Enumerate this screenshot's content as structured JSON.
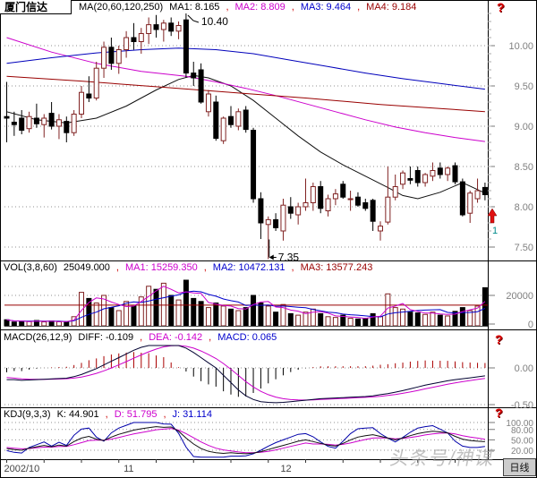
{
  "meta": {
    "title": "厦门信达",
    "period_label": "日线",
    "watermark": "头条号/神谋",
    "help_glyph": "?"
  },
  "colors": {
    "candle_up": "#802222",
    "candle_down": "#000000",
    "ma1": "#101010",
    "ma2": "#cc00cc",
    "ma3": "#0000bb",
    "ma4": "#990000",
    "grid": "#909090",
    "axis_label": "#808080",
    "separator": "#cc0000",
    "signal_arrow": "#e01010",
    "signal_count": "#008b8b",
    "hist_pos": "#aa0000",
    "hist_neg": "#000000"
  },
  "panels": {
    "main": {
      "header": {
        "ma_group": "MA(20,60,120,250)",
        "ma1": "MA1: 8.165",
        "ma2": "MA2: 8.809",
        "ma3": "MA3: 9.464",
        "ma4": "MA4: 9.184",
        "sep": ","
      },
      "y_labels": [
        "10.00",
        "9.50",
        "9.00",
        "8.50",
        "8.00",
        "7.50"
      ],
      "annotations": {
        "high": "10.40",
        "low": "7.35"
      },
      "signal": {
        "count": "1"
      }
    },
    "vol": {
      "header": {
        "label": "VOL(3,8,60)",
        "value": "25049.000",
        "ma1": "MA1: 15259.350",
        "ma2": "MA2: 10472.131",
        "ma3": "MA3: 13577.243",
        "sep": ","
      },
      "y_labels": [
        "20000",
        "0"
      ]
    },
    "macd": {
      "header": {
        "label": "MACD(26,12,9)",
        "diff": "DIFF: -0.109",
        "dea": "DEA: -0.142",
        "macd": "MACD: 0.065",
        "sep": ","
      },
      "y_labels": [
        "0.00",
        "-0.50"
      ]
    },
    "kdj": {
      "header": {
        "label": "KDJ(9,3,3)",
        "k": "K: 44.901",
        "d": "D: 51.795",
        "j": "J: 31.114",
        "sep": ","
      },
      "y_labels": [
        "100.00",
        "80.00",
        "50.00",
        "20.00"
      ]
    }
  },
  "x_axis": {
    "labels": [
      {
        "text": "2002/10",
        "index": 0
      },
      {
        "text": "11",
        "index": 16
      },
      {
        "text": "12",
        "index": 37
      }
    ]
  },
  "chart_data": [
    {
      "type": "candlestick",
      "title": "厦门信达 daily",
      "ylim": [
        7.35,
        10.45
      ],
      "y_ticks": [
        10.0,
        9.5,
        9.0,
        8.5,
        8.0,
        7.5
      ],
      "ohlc": [
        [
          9.12,
          9.55,
          8.8,
          9.1
        ],
        [
          9.05,
          9.18,
          8.88,
          9.02
        ],
        [
          9.1,
          9.2,
          8.9,
          8.95
        ],
        [
          8.97,
          9.18,
          8.92,
          9.12
        ],
        [
          9.1,
          9.28,
          8.98,
          9.03
        ],
        [
          9.02,
          9.15,
          8.86,
          9.1
        ],
        [
          9.16,
          9.3,
          8.96,
          9.0
        ],
        [
          9.0,
          9.15,
          8.84,
          9.08
        ],
        [
          9.06,
          9.12,
          8.8,
          8.92
        ],
        [
          8.92,
          9.2,
          8.88,
          9.15
        ],
        [
          9.15,
          9.5,
          9.1,
          9.42
        ],
        [
          9.4,
          9.62,
          9.3,
          9.35
        ],
        [
          9.35,
          9.8,
          9.32,
          9.72
        ],
        [
          9.72,
          10.05,
          9.6,
          9.98
        ],
        [
          9.98,
          10.1,
          9.7,
          9.78
        ],
        [
          9.78,
          10.0,
          9.65,
          9.95
        ],
        [
          9.95,
          10.18,
          9.85,
          10.1
        ],
        [
          10.1,
          10.28,
          9.95,
          10.05
        ],
        [
          10.05,
          10.22,
          9.9,
          10.15
        ],
        [
          10.15,
          10.35,
          10.02,
          10.26
        ],
        [
          10.26,
          10.38,
          10.1,
          10.2
        ],
        [
          10.2,
          10.32,
          10.05,
          10.28
        ],
        [
          10.28,
          10.35,
          10.12,
          10.18
        ],
        [
          10.18,
          10.3,
          10.08,
          10.25
        ],
        [
          10.32,
          10.4,
          9.6,
          9.66
        ],
        [
          9.66,
          9.8,
          9.5,
          9.6
        ],
        [
          9.7,
          9.78,
          9.28,
          9.3
        ],
        [
          9.18,
          9.45,
          9.12,
          9.4
        ],
        [
          9.3,
          9.38,
          8.82,
          8.85
        ],
        [
          8.82,
          9.12,
          8.78,
          9.1
        ],
        [
          9.12,
          9.25,
          8.98,
          9.02
        ],
        [
          9.0,
          9.22,
          8.95,
          9.18
        ],
        [
          9.2,
          9.25,
          8.92,
          8.96
        ],
        [
          8.95,
          8.98,
          8.05,
          8.1
        ],
        [
          8.1,
          8.18,
          7.6,
          7.8
        ],
        [
          7.78,
          7.88,
          7.35,
          7.84
        ],
        [
          7.84,
          7.92,
          7.7,
          7.74
        ],
        [
          7.7,
          8.1,
          7.58,
          8.02
        ],
        [
          8.0,
          8.12,
          7.85,
          7.92
        ],
        [
          7.9,
          8.05,
          7.78,
          8.0
        ],
        [
          8.0,
          8.35,
          7.95,
          8.05
        ],
        [
          8.05,
          8.3,
          7.95,
          8.25
        ],
        [
          8.25,
          8.32,
          7.92,
          7.98
        ],
        [
          7.95,
          8.15,
          7.88,
          8.1
        ],
        [
          8.1,
          8.22,
          8.02,
          8.16
        ],
        [
          8.28,
          8.32,
          8.1,
          8.12
        ],
        [
          8.1,
          8.2,
          7.95,
          8.1
        ],
        [
          8.12,
          8.18,
          8.0,
          8.02
        ],
        [
          8.05,
          8.1,
          7.95,
          7.98
        ],
        [
          8.08,
          8.1,
          7.7,
          7.82
        ],
        [
          7.7,
          7.82,
          7.58,
          7.76
        ],
        [
          7.81,
          8.5,
          7.78,
          8.12
        ],
        [
          8.12,
          8.4,
          8.08,
          8.25
        ],
        [
          8.28,
          8.45,
          8.22,
          8.42
        ],
        [
          8.35,
          8.5,
          8.28,
          8.33
        ],
        [
          8.45,
          8.5,
          8.25,
          8.3
        ],
        [
          8.3,
          8.42,
          8.25,
          8.4
        ],
        [
          8.38,
          8.55,
          8.32,
          8.45
        ],
        [
          8.48,
          8.55,
          8.35,
          8.4
        ],
        [
          8.4,
          8.5,
          8.32,
          8.48
        ],
        [
          8.51,
          8.55,
          8.28,
          8.31
        ],
        [
          8.31,
          8.35,
          7.88,
          7.9
        ],
        [
          7.92,
          8.2,
          7.8,
          8.17
        ],
        [
          8.1,
          8.35,
          8.05,
          8.2
        ],
        [
          8.24,
          8.3,
          8.08,
          8.15
        ]
      ],
      "ma_lines": [
        {
          "name": "MA1(20)",
          "color": "#101010",
          "points": [
            [
              0,
              9.18
            ],
            [
              4,
              9.08
            ],
            [
              8,
              9.04
            ],
            [
              12,
              9.1
            ],
            [
              16,
              9.25
            ],
            [
              20,
              9.45
            ],
            [
              23,
              9.58
            ],
            [
              25,
              9.63
            ],
            [
              27,
              9.6
            ],
            [
              30,
              9.5
            ],
            [
              33,
              9.32
            ],
            [
              36,
              9.1
            ],
            [
              39,
              8.88
            ],
            [
              42,
              8.68
            ],
            [
              45,
              8.52
            ],
            [
              48,
              8.38
            ],
            [
              51,
              8.24
            ],
            [
              53,
              8.14
            ],
            [
              55,
              8.1
            ],
            [
              58,
              8.18
            ],
            [
              61,
              8.3
            ],
            [
              64,
              8.17
            ]
          ]
        },
        {
          "name": "MA2(60)",
          "color": "#cc00cc",
          "points": [
            [
              0,
              10.1
            ],
            [
              6,
              9.92
            ],
            [
              12,
              9.78
            ],
            [
              18,
              9.68
            ],
            [
              24,
              9.62
            ],
            [
              28,
              9.55
            ],
            [
              32,
              9.47
            ],
            [
              36,
              9.38
            ],
            [
              40,
              9.28
            ],
            [
              44,
              9.18
            ],
            [
              48,
              9.08
            ],
            [
              52,
              8.99
            ],
            [
              56,
              8.92
            ],
            [
              60,
              8.86
            ],
            [
              64,
              8.81
            ]
          ]
        },
        {
          "name": "MA3(120)",
          "color": "#0000bb",
          "points": [
            [
              0,
              9.78
            ],
            [
              6,
              9.85
            ],
            [
              12,
              9.91
            ],
            [
              18,
              9.95
            ],
            [
              23,
              9.97
            ],
            [
              28,
              9.95
            ],
            [
              33,
              9.9
            ],
            [
              38,
              9.82
            ],
            [
              43,
              9.74
            ],
            [
              48,
              9.66
            ],
            [
              53,
              9.59
            ],
            [
              58,
              9.53
            ],
            [
              64,
              9.46
            ]
          ]
        },
        {
          "name": "MA4(250)",
          "color": "#990000",
          "points": [
            [
              0,
              9.62
            ],
            [
              10,
              9.56
            ],
            [
              20,
              9.49
            ],
            [
              30,
              9.42
            ],
            [
              40,
              9.35
            ],
            [
              50,
              9.27
            ],
            [
              58,
              9.22
            ],
            [
              64,
              9.18
            ]
          ]
        }
      ],
      "annotations": [
        {
          "text": "10.40",
          "index": 24,
          "price": 10.4,
          "kind": "high"
        },
        {
          "text": "7.35",
          "index": 35,
          "price": 7.35,
          "kind": "low"
        }
      ]
    },
    {
      "type": "bar",
      "name": "volume",
      "y_ticks": [
        20000,
        0
      ],
      "current": 25049,
      "ma3_flat": 13577.243,
      "values": [
        4000,
        2500,
        3000,
        2800,
        3500,
        2600,
        3200,
        2700,
        2400,
        6000,
        22000,
        18000,
        15000,
        20000,
        12000,
        10000,
        16000,
        13000,
        19000,
        26000,
        24000,
        28000,
        20000,
        17000,
        30000,
        18000,
        16000,
        12000,
        15000,
        13000,
        11000,
        10000,
        12000,
        20000,
        15000,
        13000,
        9000,
        14000,
        8000,
        7000,
        9000,
        11000,
        8000,
        6000,
        5500,
        7000,
        5000,
        4500,
        5000,
        8000,
        6000,
        21000,
        12000,
        11000,
        9000,
        8500,
        7500,
        9000,
        7000,
        6500,
        9500,
        12000,
        10000,
        13000,
        25049
      ]
    },
    {
      "type": "macd",
      "y_ticks": [
        0.0,
        -0.5
      ],
      "final": {
        "diff": -0.109,
        "dea": -0.142,
        "macd": 0.065
      },
      "diff": [
        -0.16,
        -0.16,
        -0.17,
        -0.165,
        -0.16,
        -0.155,
        -0.15,
        -0.145,
        -0.14,
        -0.12,
        -0.09,
        -0.05,
        -0.01,
        0.04,
        0.09,
        0.14,
        0.19,
        0.24,
        0.28,
        0.32,
        0.34,
        0.36,
        0.34,
        0.31,
        0.27,
        0.21,
        0.14,
        0.07,
        0.0,
        -0.1,
        -0.2,
        -0.3,
        -0.38,
        -0.43,
        -0.46,
        -0.47,
        -0.475,
        -0.47,
        -0.46,
        -0.45,
        -0.44,
        -0.43,
        -0.42,
        -0.415,
        -0.41,
        -0.405,
        -0.4,
        -0.395,
        -0.39,
        -0.38,
        -0.365,
        -0.35,
        -0.33,
        -0.31,
        -0.285,
        -0.26,
        -0.235,
        -0.215,
        -0.195,
        -0.175,
        -0.16,
        -0.148,
        -0.135,
        -0.122,
        -0.109
      ]
    },
    {
      "type": "kdj",
      "y_ticks": [
        100,
        80,
        50,
        20
      ],
      "final": {
        "k": 44.901,
        "d": 51.795,
        "j": 31.114
      },
      "k": [
        25,
        22,
        20,
        26,
        30,
        34,
        30,
        35,
        32,
        45,
        55,
        60,
        52,
        48,
        58,
        66,
        72,
        78,
        82,
        85,
        88,
        86,
        87,
        75,
        55,
        38,
        25,
        17,
        13,
        11,
        13,
        11,
        10,
        12,
        16,
        22,
        28,
        34,
        40,
        46,
        50,
        45,
        40,
        35,
        32,
        40,
        50,
        58,
        62,
        65,
        60,
        55,
        50,
        55,
        62,
        68,
        72,
        75,
        73,
        70,
        60,
        52,
        48,
        46,
        44.9
      ],
      "d": [
        28,
        26,
        24,
        25,
        27,
        29,
        29,
        31,
        31,
        36,
        42,
        48,
        49,
        49,
        52,
        57,
        62,
        67,
        71,
        75,
        79,
        81,
        83,
        78,
        68,
        56,
        44,
        34,
        26,
        21,
        18,
        15,
        13,
        13,
        14,
        17,
        21,
        26,
        31,
        36,
        41,
        38,
        38,
        37,
        35,
        37,
        41,
        46,
        51,
        55,
        56,
        55,
        53,
        54,
        57,
        60,
        64,
        67,
        69,
        70,
        67,
        62,
        58,
        55,
        51.8
      ]
    }
  ]
}
